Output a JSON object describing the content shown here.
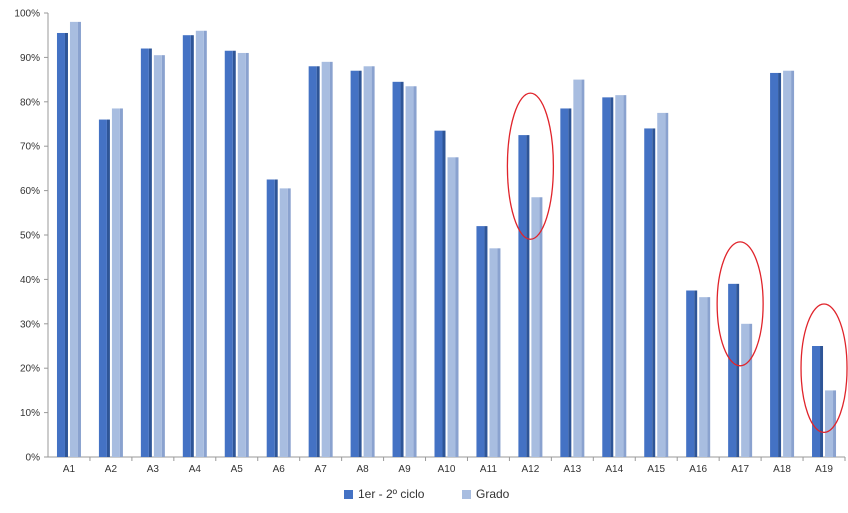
{
  "chart_data": {
    "type": "bar",
    "categories": [
      "A1",
      "A2",
      "A3",
      "A4",
      "A5",
      "A6",
      "A7",
      "A8",
      "A9",
      "A10",
      "A11",
      "A12",
      "A13",
      "A14",
      "A15",
      "A16",
      "A17",
      "A18",
      "A19"
    ],
    "series": [
      {
        "name": "1er -  2º ciclo",
        "color": "#4472c4",
        "values": [
          95.5,
          76,
          92,
          95,
          91.5,
          62.5,
          88,
          87,
          84.5,
          73.5,
          52,
          72.5,
          78.5,
          81,
          74,
          37.5,
          39,
          86.5,
          25
        ]
      },
      {
        "name": "Grado",
        "color": "#a8bde0",
        "values": [
          98,
          78.5,
          90.5,
          96,
          91,
          60.5,
          89,
          88,
          83.5,
          67.5,
          47,
          58.5,
          85,
          81.5,
          77.5,
          36,
          30,
          87,
          15
        ]
      }
    ],
    "ylim": [
      0,
      100
    ],
    "yticks": [
      "0%",
      "10%",
      "20%",
      "30%",
      "40%",
      "50%",
      "60%",
      "70%",
      "80%",
      "90%",
      "100%"
    ],
    "grid": false,
    "legend": "bottom-center",
    "highlighted_categories": [
      "A12",
      "A17",
      "A19"
    ],
    "highlight_color": "#e0242b"
  }
}
